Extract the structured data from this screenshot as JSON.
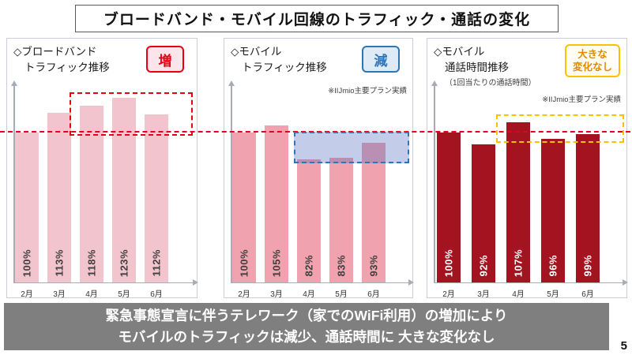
{
  "slide": {
    "title": "ブロードバンド・モバイル回線のトラフィック・通話の変化",
    "page_number": "5",
    "footer": {
      "line1": "緊急事態宣言に伴うテレワーク（家でのWiFi利用）の増加により",
      "line2": "モバイルのトラフィックは減少、通話時間に 大きな変化なし"
    }
  },
  "reference_line": {
    "value_percent": 100,
    "color": "#e8001a",
    "style": "dashed"
  },
  "chart_data": [
    {
      "type": "bar",
      "panel_title_line1": "◇ブロードバンド",
      "panel_title_line2": "トラフィック推移",
      "badge": "増",
      "badge_colors": {
        "border": "#e60012",
        "text": "#e60012",
        "bg": "#fbe5ea"
      },
      "categories": [
        "2月",
        "3月",
        "4月",
        "5月",
        "6月"
      ],
      "values": [
        100,
        113,
        118,
        123,
        112
      ],
      "value_labels": [
        "100%",
        "113%",
        "118%",
        "123%",
        "112%"
      ],
      "ylim": [
        0,
        130
      ],
      "bar_color": "#f2c4ce",
      "value_label_color": "#3f3f3f",
      "highlight": {
        "shape": "dashed-box",
        "color": "#e60012",
        "covers": [
          "4月",
          "5月",
          "6月"
        ]
      }
    },
    {
      "type": "bar",
      "panel_title_line1": "◇モバイル",
      "panel_title_line2": "トラフィック推移",
      "badge": "減",
      "badge_colors": {
        "border": "#2e75b6",
        "text": "#2e75b6",
        "bg": "#deeaf6"
      },
      "note": "※IIJmio主要プラン実績",
      "categories": [
        "2月",
        "3月",
        "4月",
        "5月",
        "6月"
      ],
      "values": [
        100,
        105,
        82,
        83,
        93
      ],
      "value_labels": [
        "100%",
        "105%",
        "82%",
        "83%",
        "93%"
      ],
      "ylim": [
        0,
        130
      ],
      "bar_color": "#f0a2ae",
      "value_label_color": "#3f3f3f",
      "highlight": {
        "shape": "dashed-box-filled",
        "color": "#2e75b6",
        "covers": [
          "4月",
          "5月",
          "6月"
        ]
      }
    },
    {
      "type": "bar",
      "panel_title_line1": "◇モバイル",
      "panel_title_line2": "通話時間推移",
      "panel_subtitle": "（1回当たりの通話時間）",
      "badge": "大きな\n変化なし",
      "badge_colors": {
        "border": "#ffc000",
        "text": "#e18a00",
        "bg": "#fffdf4"
      },
      "note": "※IIJmio主要プラン実績",
      "categories": [
        "2月",
        "3月",
        "4月",
        "5月",
        "6月"
      ],
      "values": [
        100,
        92,
        107,
        96,
        99
      ],
      "value_labels": [
        "100%",
        "92%",
        "107%",
        "96%",
        "99%"
      ],
      "ylim": [
        0,
        130
      ],
      "bar_color": "#a41420",
      "value_label_color": "#ffffff",
      "highlight": {
        "shape": "dashed-box",
        "color": "#ffc000",
        "covers": [
          "2月",
          "3月",
          "4月",
          "5月",
          "6月"
        ]
      }
    }
  ]
}
